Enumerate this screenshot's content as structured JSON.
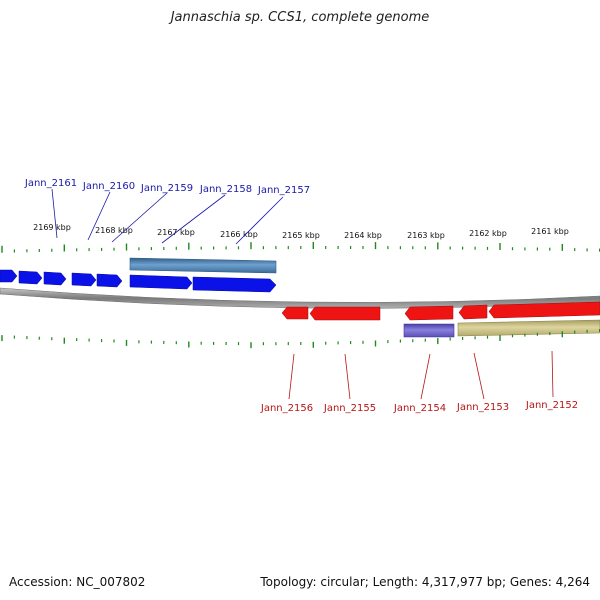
{
  "title": "Jannaschia sp. CCS1, complete genome",
  "footer": {
    "accession": "Accession: NC_007802",
    "summary": "Topology: circular; Length: 4,317,977 bp; Genes: 4,264"
  },
  "colors": {
    "forward": "#0b12e8",
    "reverse": "#ee1414",
    "forward_label": "#1a1aa8",
    "reverse_label": "#b51616",
    "backbone": "#8a8a8a",
    "tick": "#1f8a1f",
    "steelblue": "#4a84b8",
    "purple": "#6a5cc6",
    "khaki": "#c7bf82"
  },
  "scale": {
    "ticks": [
      "2169 kbp",
      "2168 kbp",
      "2167 kbp",
      "2166 kbp",
      "2165 kbp",
      "2164 kbp",
      "2163 kbp",
      "2162 kbp",
      "2161 kbp"
    ]
  },
  "genes": {
    "forward": [
      "Jann_2161",
      "Jann_2160",
      "Jann_2159",
      "Jann_2158",
      "Jann_2157"
    ],
    "reverse": [
      "Jann_2156",
      "Jann_2155",
      "Jann_2154",
      "Jann_2153",
      "Jann_2152"
    ]
  }
}
